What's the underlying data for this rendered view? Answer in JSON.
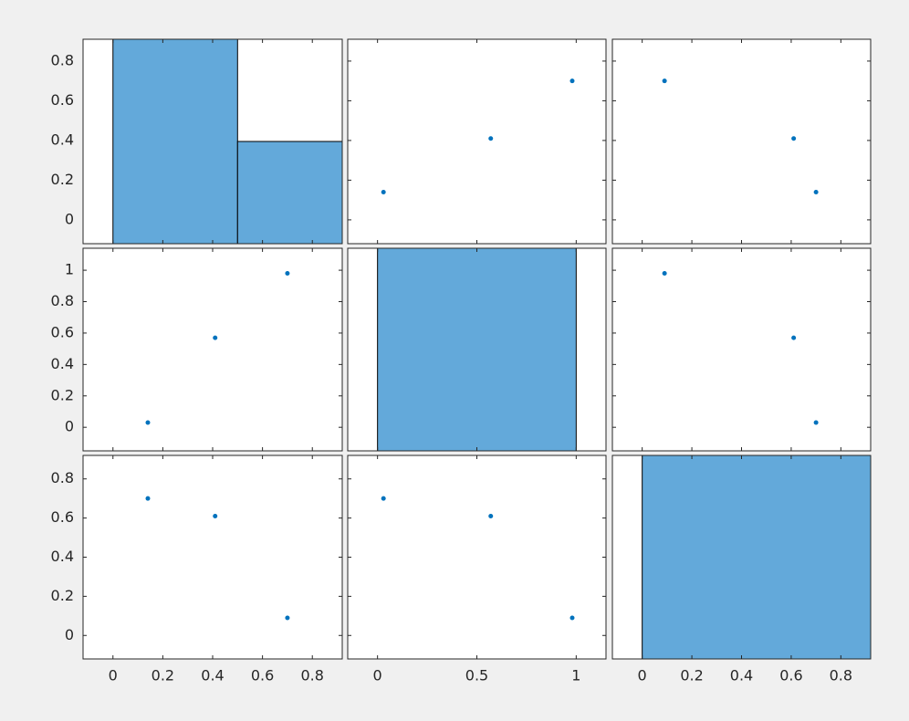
{
  "chart_data": {
    "type": "plotmatrix",
    "variables": [
      [
        0.14,
        0.41,
        0.7
      ],
      [
        0.03,
        0.57,
        0.98
      ],
      [
        0.7,
        0.61,
        0.09
      ]
    ],
    "columns": [
      {
        "xlim": [
          -0.12,
          0.92
        ],
        "xticks": [
          0,
          0.2,
          0.4,
          0.6,
          0.8
        ]
      },
      {
        "xlim": [
          -0.15,
          1.15
        ],
        "xticks": [
          0,
          0.5,
          1
        ]
      },
      {
        "xlim": [
          -0.12,
          0.92
        ],
        "xticks": [
          0,
          0.2,
          0.4,
          0.6,
          0.8
        ]
      }
    ],
    "rows": [
      {
        "ylim": [
          -0.12,
          0.91
        ],
        "yticks": [
          0,
          0.2,
          0.4,
          0.6,
          0.8
        ]
      },
      {
        "ylim": [
          -0.15,
          1.14
        ],
        "yticks": [
          0,
          0.2,
          0.4,
          0.6,
          0.8,
          1
        ]
      },
      {
        "ylim": [
          -0.12,
          0.92
        ],
        "yticks": [
          0,
          0.2,
          0.4,
          0.6,
          0.8
        ]
      }
    ],
    "histograms": [
      {
        "bins": [
          0,
          0.5,
          1
        ],
        "counts": [
          2,
          1
        ],
        "ylim": [
          0,
          2
        ]
      },
      {
        "bins": [
          0,
          1
        ],
        "counts": [
          3
        ],
        "ylim": [
          0,
          3
        ]
      },
      {
        "bins": [
          0,
          1
        ],
        "counts": [
          3
        ],
        "ylim": [
          0,
          3
        ]
      }
    ],
    "marker_color": "#0072bd",
    "hist_color": "#63a9da"
  }
}
